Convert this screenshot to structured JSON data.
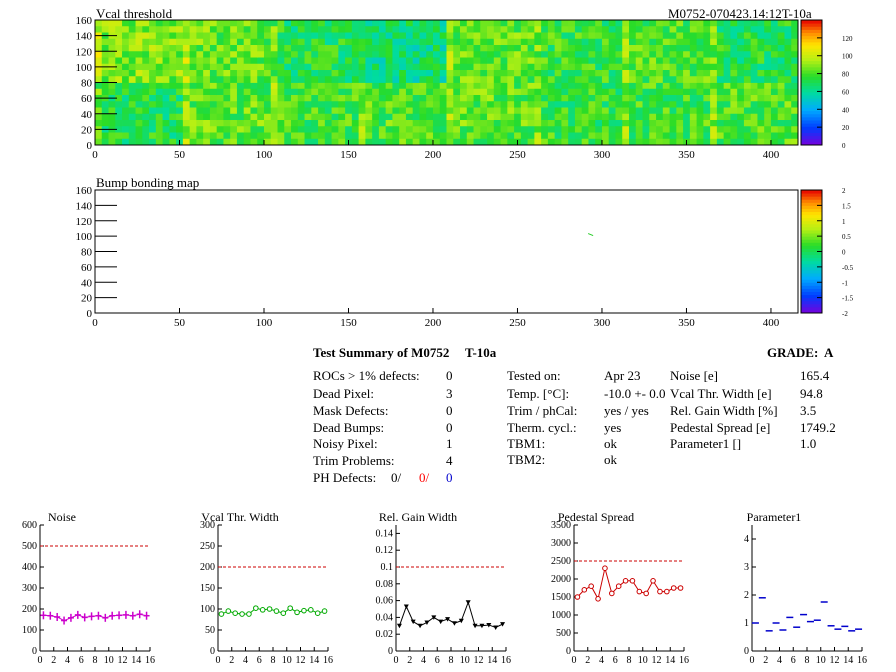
{
  "top_header": {
    "title": "Vcal threshold",
    "module_id": "M0752-070423.14:12T-10a"
  },
  "bump_header": {
    "title": "Bump bonding map"
  },
  "summary": {
    "title": "Test Summary of M0752",
    "test_id": "T-10a",
    "grade_label": "GRADE:",
    "grade": "A",
    "col1": [
      {
        "label": "ROCs > 1% defects:",
        "value": "0"
      },
      {
        "label": "Dead Pixel:",
        "value": "3"
      },
      {
        "label": "Mask Defects:",
        "value": "0"
      },
      {
        "label": "Dead Bumps:",
        "value": "0"
      },
      {
        "label": "Noisy Pixel:",
        "value": "1"
      },
      {
        "label": "Trim Problems:",
        "value": "4"
      }
    ],
    "ph_defects": {
      "label": "PH Defects:",
      "v1": "0/",
      "v2": "0/",
      "v3": "0",
      "c1": "#000000",
      "c2": "#ff0000",
      "c3": "#0000cc"
    },
    "col2": [
      {
        "label": "Tested on:",
        "value": "Apr 23"
      },
      {
        "label": "Temp. [°C]:",
        "value": "-10.0 +- 0.0"
      },
      {
        "label": "Trim / phCal:",
        "value": "yes / yes"
      },
      {
        "label": "Therm. cycl.:",
        "value": "yes"
      },
      {
        "label": "TBM1:",
        "value": "ok"
      },
      {
        "label": "TBM2:",
        "value": "ok"
      }
    ],
    "col3": [
      {
        "label": "Noise [e]",
        "value": "165.4"
      },
      {
        "label": "Vcal Thr. Width [e]",
        "value": "94.8"
      },
      {
        "label": "Rel. Gain Width [%]",
        "value": "3.5"
      },
      {
        "label": "Pedestal Spread [e]",
        "value": "1749.2"
      },
      {
        "label": "Parameter1 []",
        "value": "1.0"
      }
    ]
  },
  "chart_data": [
    {
      "type": "heatmap",
      "title": "Vcal threshold",
      "xlim": [
        0,
        416
      ],
      "ylim": [
        0,
        160
      ],
      "xticks": [
        "0",
        "50",
        "100",
        "150",
        "200",
        "250",
        "300",
        "350",
        "400"
      ],
      "yticks": [
        "0",
        "20",
        "40",
        "60",
        "80",
        "100",
        "120",
        "140",
        "160"
      ],
      "zlim": [
        0,
        140
      ],
      "zticks": [
        "0",
        "20",
        "40",
        "60",
        "80",
        "100",
        "120"
      ],
      "grid": "2 rows x 8 ROCs",
      "roc_levels": [
        [
          72,
          82,
          78,
          80,
          82,
          76,
          78,
          80
        ],
        [
          88,
          84,
          72,
          65,
          82,
          76,
          80,
          72
        ]
      ]
    },
    {
      "type": "heatmap",
      "title": "Bump bonding map",
      "xlim": [
        0,
        416
      ],
      "ylim": [
        0,
        160
      ],
      "xticks": [
        "0",
        "50",
        "100",
        "150",
        "200",
        "250",
        "300",
        "350",
        "400"
      ],
      "yticks": [
        "0",
        "20",
        "40",
        "60",
        "80",
        "100",
        "120",
        "140",
        "160"
      ],
      "zlim": [
        -2,
        2
      ],
      "zticks": [
        "-2",
        "-1.5",
        "-1",
        "-0.5",
        "0",
        "0.5",
        "1",
        "1.5",
        "2"
      ],
      "hits": [
        {
          "x": 293,
          "y": 102
        }
      ]
    },
    {
      "type": "line",
      "title": "Noise",
      "color": "#cc00cc",
      "marker": "cross",
      "xlim": [
        0,
        16
      ],
      "ylim": [
        0,
        600
      ],
      "xticks": [
        "0",
        "2",
        "4",
        "6",
        "8",
        "10",
        "12",
        "14",
        "16"
      ],
      "yticks": [
        "0",
        "100",
        "200",
        "300",
        "400",
        "500",
        "600"
      ],
      "ref": 500,
      "x": [
        0.5,
        1.5,
        2.5,
        3.5,
        4.5,
        5.5,
        6.5,
        7.5,
        8.5,
        9.5,
        10.5,
        11.5,
        12.5,
        13.5,
        14.5,
        15.5
      ],
      "values": [
        170,
        168,
        162,
        145,
        158,
        172,
        160,
        165,
        168,
        158,
        168,
        170,
        172,
        168,
        175,
        168
      ]
    },
    {
      "type": "line",
      "title": "Vcal Thr. Width",
      "color": "#00aa00",
      "marker": "circle",
      "xlim": [
        0,
        16
      ],
      "ylim": [
        0,
        300
      ],
      "xticks": [
        "0",
        "2",
        "4",
        "6",
        "8",
        "10",
        "12",
        "14",
        "16"
      ],
      "yticks": [
        "0",
        "50",
        "100",
        "150",
        "200",
        "250",
        "300"
      ],
      "ref": 200,
      "x": [
        0.5,
        1.5,
        2.5,
        3.5,
        4.5,
        5.5,
        6.5,
        7.5,
        8.5,
        9.5,
        10.5,
        11.5,
        12.5,
        13.5,
        14.5,
        15.5
      ],
      "values": [
        88,
        95,
        90,
        88,
        88,
        102,
        98,
        100,
        95,
        90,
        102,
        92,
        96,
        98,
        90,
        95
      ]
    },
    {
      "type": "line",
      "title": "Rel. Gain Width",
      "color": "#000000",
      "marker": "triangle",
      "xlim": [
        0,
        16
      ],
      "ylim": [
        0,
        0.15
      ],
      "xticks": [
        "0",
        "2",
        "4",
        "6",
        "8",
        "10",
        "12",
        "14",
        "16"
      ],
      "yticks": [
        "0",
        "0.02",
        "0.04",
        "0.06",
        "0.08",
        "0.1",
        "0.12",
        "0.14"
      ],
      "ref": 0.1,
      "x": [
        0.5,
        1.5,
        2.5,
        3.5,
        4.5,
        5.5,
        6.5,
        7.5,
        8.5,
        9.5,
        10.5,
        11.5,
        12.5,
        13.5,
        14.5,
        15.5
      ],
      "values": [
        0.03,
        0.053,
        0.035,
        0.03,
        0.034,
        0.04,
        0.035,
        0.038,
        0.033,
        0.036,
        0.058,
        0.03,
        0.03,
        0.031,
        0.028,
        0.032
      ]
    },
    {
      "type": "line",
      "title": "Pedestal Spread",
      "color": "#cc0000",
      "marker": "circle",
      "xlim": [
        0,
        16
      ],
      "ylim": [
        0,
        3500
      ],
      "xticks": [
        "0",
        "2",
        "4",
        "6",
        "8",
        "10",
        "12",
        "14",
        "16"
      ],
      "yticks": [
        "0",
        "500",
        "1000",
        "1500",
        "2000",
        "2500",
        "3000",
        "3500"
      ],
      "ref": 2500,
      "x": [
        0.5,
        1.5,
        2.5,
        3.5,
        4.5,
        5.5,
        6.5,
        7.5,
        8.5,
        9.5,
        10.5,
        11.5,
        12.5,
        13.5,
        14.5,
        15.5
      ],
      "values": [
        1500,
        1700,
        1800,
        1450,
        2300,
        1600,
        1800,
        1950,
        1950,
        1650,
        1600,
        1950,
        1650,
        1650,
        1750,
        1750
      ]
    },
    {
      "type": "scatter",
      "title": "Parameter1",
      "color": "#0000cc",
      "marker": "hbar",
      "xlim": [
        0,
        16
      ],
      "ylim": [
        0,
        4.5
      ],
      "xticks": [
        "0",
        "2",
        "4",
        "6",
        "8",
        "10",
        "12",
        "14",
        "16"
      ],
      "yticks": [
        "0",
        "1",
        "2",
        "3",
        "4"
      ],
      "x": [
        0.5,
        1.5,
        2.5,
        3.5,
        4.5,
        5.5,
        6.5,
        7.5,
        8.5,
        9.5,
        10.5,
        11.5,
        12.5,
        13.5,
        14.5,
        15.5
      ],
      "values": [
        1.0,
        1.9,
        0.72,
        1.0,
        0.75,
        1.2,
        0.85,
        1.3,
        1.05,
        1.1,
        1.75,
        0.9,
        0.78,
        0.88,
        0.72,
        0.78
      ]
    }
  ]
}
